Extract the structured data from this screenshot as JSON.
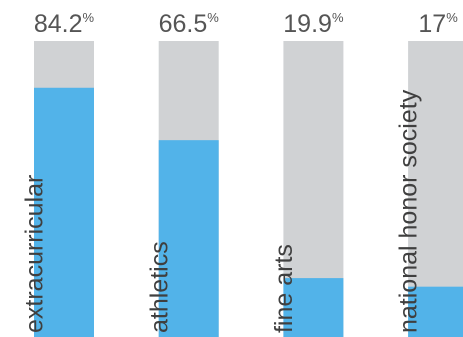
{
  "chart_data": {
    "type": "bar",
    "title": "",
    "xlabel": "",
    "ylabel": "",
    "ylim": [
      0,
      100
    ],
    "unit": "%",
    "categories": [
      "extracurricular",
      "athletics",
      "fine arts",
      "national honor society"
    ],
    "values": [
      84.2,
      66.5,
      19.9,
      17
    ],
    "value_labels": [
      "84.2",
      "66.5",
      "19.9",
      "17"
    ],
    "grid": false,
    "legend": "none",
    "colors": {
      "fill": "#52b3e9",
      "track": "#d0d2d4",
      "value_text": "#555555",
      "category_text": "#3f3f3f"
    }
  }
}
